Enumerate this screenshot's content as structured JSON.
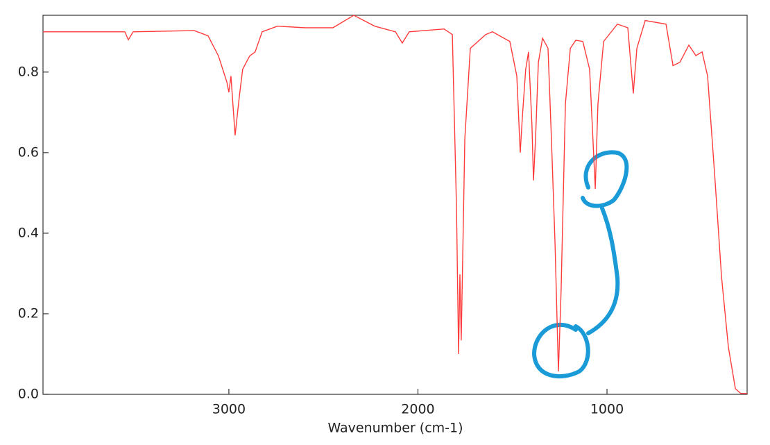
{
  "chart_data": {
    "type": "line",
    "x_label": "Wavenumber (cm-1)",
    "xlim": [
      3983,
      259
    ],
    "ylim": [
      0,
      0.941
    ],
    "xticks": [
      3000,
      2000,
      1000
    ],
    "yticks": [
      {
        "value": 0,
        "label": "0.0"
      },
      0.2,
      0.4,
      0.6,
      0.8
    ],
    "series": [
      {
        "color": "#ff3b3b",
        "x": [
          3983,
          3550,
          3532,
          3506,
          3183,
          3110,
          3055,
          3011,
          3000,
          2989,
          2967,
          2945,
          2927,
          2890,
          2861,
          2824,
          2743,
          2596,
          2450,
          2339,
          2229,
          2119,
          2083,
          2046,
          1862,
          1818,
          1796,
          1785,
          1778,
          1771,
          1752,
          1723,
          1642,
          1606,
          1514,
          1477,
          1459,
          1448,
          1430,
          1415,
          1397,
          1389,
          1378,
          1363,
          1341,
          1312,
          1294,
          1275,
          1257,
          1243,
          1220,
          1194,
          1165,
          1128,
          1092,
          1062,
          1048,
          1018,
          945,
          890,
          861,
          842,
          798,
          688,
          651,
          615,
          567,
          530,
          497,
          468,
          431,
          394,
          358,
          321,
          292,
          259
        ],
        "values": [
          0.9,
          0.9,
          0.88,
          0.9,
          0.903,
          0.89,
          0.84,
          0.776,
          0.75,
          0.79,
          0.643,
          0.738,
          0.807,
          0.84,
          0.85,
          0.9,
          0.914,
          0.91,
          0.91,
          0.941,
          0.914,
          0.9,
          0.872,
          0.9,
          0.907,
          0.893,
          0.462,
          0.1,
          0.298,
          0.134,
          0.634,
          0.859,
          0.893,
          0.9,
          0.876,
          0.79,
          0.6,
          0.686,
          0.807,
          0.85,
          0.669,
          0.531,
          0.634,
          0.824,
          0.884,
          0.859,
          0.634,
          0.376,
          0.057,
          0.255,
          0.721,
          0.859,
          0.879,
          0.876,
          0.807,
          0.51,
          0.721,
          0.876,
          0.919,
          0.91,
          0.747,
          0.859,
          0.928,
          0.919,
          0.816,
          0.824,
          0.867,
          0.841,
          0.85,
          0.79,
          0.548,
          0.29,
          0.117,
          0.014,
          0.002,
          0.002
        ]
      }
    ]
  }
}
